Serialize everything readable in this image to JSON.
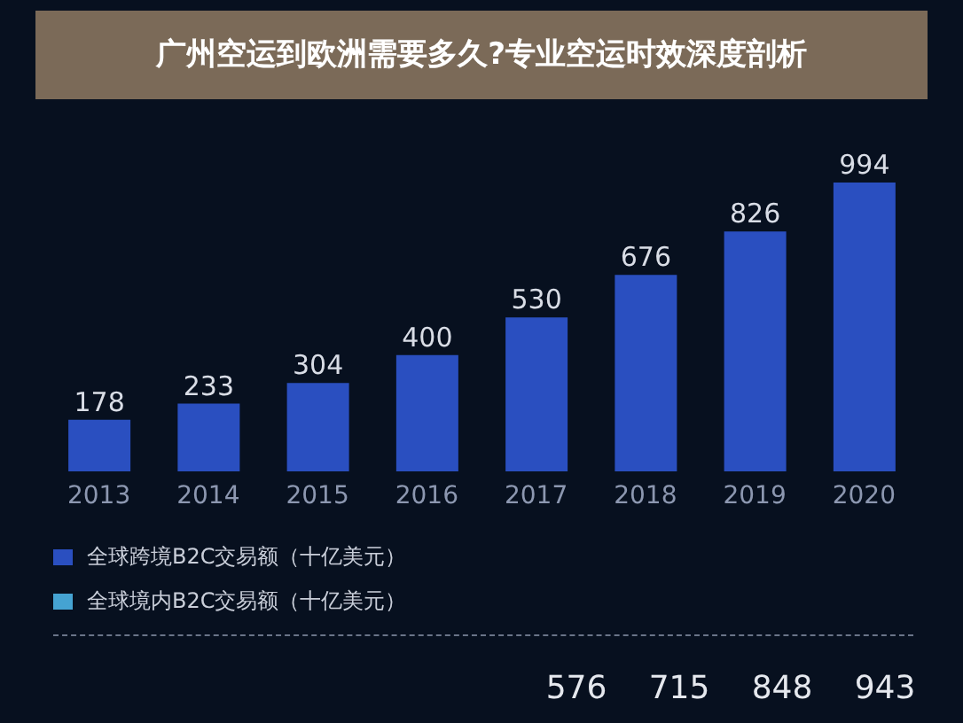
{
  "chart_data": {
    "type": "bar",
    "title": "广州空运到欧洲需要多久?专业空运时效深度剖析",
    "categories": [
      "2013",
      "2014",
      "2015",
      "2016",
      "2017",
      "2018",
      "2019",
      "2020"
    ],
    "stacked": true,
    "legend": "bottom left",
    "data_labels": true,
    "series": [
      {
        "name": "全球境内B2C交易额（十亿美元）",
        "color": "#45a3d2",
        "values": [
          null,
          null,
          null,
          null,
          null,
          null,
          null,
          null
        ]
      },
      {
        "name": "全球跨境B2C交易额（十亿美元）",
        "color": "#2a4fc0",
        "values": [
          178,
          233,
          304,
          400,
          530,
          676,
          826,
          994
        ]
      }
    ],
    "annotations": [
      "576",
      "715",
      "848",
      "943"
    ]
  }
}
